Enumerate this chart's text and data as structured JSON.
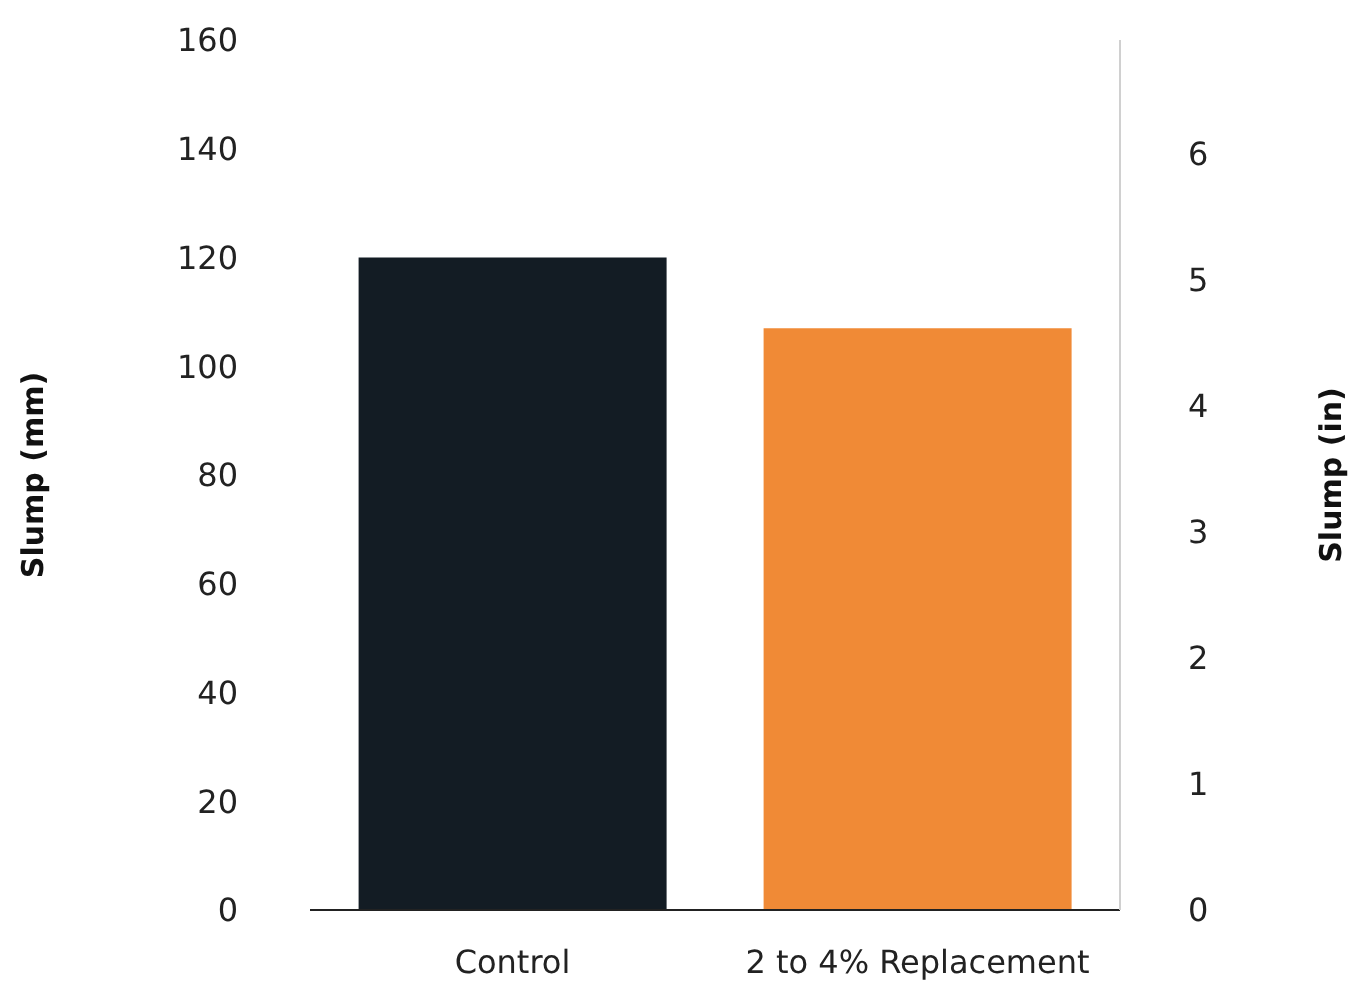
{
  "chart_data": {
    "type": "bar",
    "categories": [
      "Control",
      "2 to 4% Replacement"
    ],
    "values": [
      120,
      107
    ],
    "colors": [
      "#131c24",
      "#f08a36"
    ],
    "ylabel": "Slump (mm)",
    "y2label": "Slump (in)",
    "ylim": [
      0,
      160
    ],
    "yticks": [
      0,
      20,
      40,
      60,
      80,
      100,
      120,
      140,
      160
    ],
    "y2lim": [
      0,
      6.9
    ],
    "y2ticks": [
      0,
      1,
      2,
      3,
      4,
      5,
      6
    ],
    "grid": false,
    "legend": false
  }
}
